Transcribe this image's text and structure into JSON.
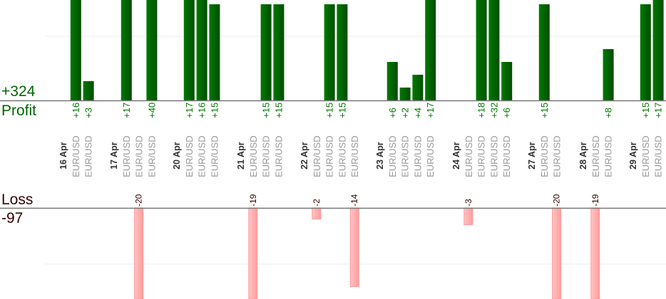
{
  "summary": {
    "profit_total": "+324",
    "profit_label": "Profit",
    "loss_label": "Loss",
    "loss_total": "-97"
  },
  "colors": {
    "profit": "#006600",
    "loss": "#ff9999",
    "loss_text": "#330000",
    "symbol": "#999999",
    "date": "#333333"
  },
  "chart_data": {
    "type": "bar",
    "title": "",
    "grid": true,
    "profit_gridline_value": 10,
    "loss_gridline_value": -10,
    "days": [
      {
        "date": "16 Apr",
        "trades": [
          {
            "symbol": "EUR/USD",
            "value": 16,
            "label": "+16"
          },
          {
            "symbol": "EUR/USD",
            "value": 3,
            "label": "+3"
          }
        ]
      },
      {
        "date": "17 Apr",
        "trades": [
          {
            "symbol": "EUR/USD",
            "value": 17,
            "label": "+17"
          },
          {
            "symbol": "EUR/USD",
            "value": -20,
            "label": "-20"
          },
          {
            "symbol": "EUR/USD",
            "value": 40,
            "label": "+40"
          }
        ]
      },
      {
        "date": "20 Apr",
        "trades": [
          {
            "symbol": "EUR/USD",
            "value": 17,
            "label": "+17"
          },
          {
            "symbol": "EUR/USD",
            "value": 16,
            "label": "+16"
          },
          {
            "symbol": "EUR/USD",
            "value": 15,
            "label": "+15"
          }
        ]
      },
      {
        "date": "21 Apr",
        "trades": [
          {
            "symbol": "EUR/USD",
            "value": -19,
            "label": "-19"
          },
          {
            "symbol": "EUR/USD",
            "value": 15,
            "label": "+15"
          },
          {
            "symbol": "EUR/USD",
            "value": 15,
            "label": "+15"
          }
        ]
      },
      {
        "date": "22 Apr",
        "trades": [
          {
            "symbol": "EUR/USD",
            "value": -2,
            "label": "-2"
          },
          {
            "symbol": "EUR/USD",
            "value": 15,
            "label": "+15"
          },
          {
            "symbol": "EUR/USD",
            "value": 15,
            "label": "+15"
          },
          {
            "symbol": "EUR/USD",
            "value": -14,
            "label": "-14"
          }
        ]
      },
      {
        "date": "23 Apr",
        "trades": [
          {
            "symbol": "EUR/USD",
            "value": 6,
            "label": "+6"
          },
          {
            "symbol": "EUR/USD",
            "value": 2,
            "label": "+2"
          },
          {
            "symbol": "EUR/USD",
            "value": 4,
            "label": "+4"
          },
          {
            "symbol": "EUR/USD",
            "value": 17,
            "label": "+17"
          }
        ]
      },
      {
        "date": "24 Apr",
        "trades": [
          {
            "symbol": "EUR/USD",
            "value": -3,
            "label": "-3"
          },
          {
            "symbol": "EUR/USD",
            "value": 18,
            "label": "+18"
          },
          {
            "symbol": "EUR/USD",
            "value": 32,
            "label": "+32"
          },
          {
            "symbol": "EUR/USD",
            "value": 6,
            "label": "+6"
          }
        ]
      },
      {
        "date": "27 Apr",
        "trades": [
          {
            "symbol": "EUR/USD",
            "value": 15,
            "label": "+15"
          },
          {
            "symbol": "EUR/USD",
            "value": -20,
            "label": "-20"
          }
        ]
      },
      {
        "date": "28 Apr",
        "trades": [
          {
            "symbol": "EUR/USD",
            "value": -19,
            "label": "-19"
          },
          {
            "symbol": "EUR/USD",
            "value": 8,
            "label": "+8"
          }
        ]
      },
      {
        "date": "29 Apr",
        "trades": [
          {
            "symbol": "EUR/USD",
            "value": 15,
            "label": "+15"
          },
          {
            "symbol": "EUR/USD",
            "value": 17,
            "label": "+17"
          }
        ]
      }
    ]
  }
}
